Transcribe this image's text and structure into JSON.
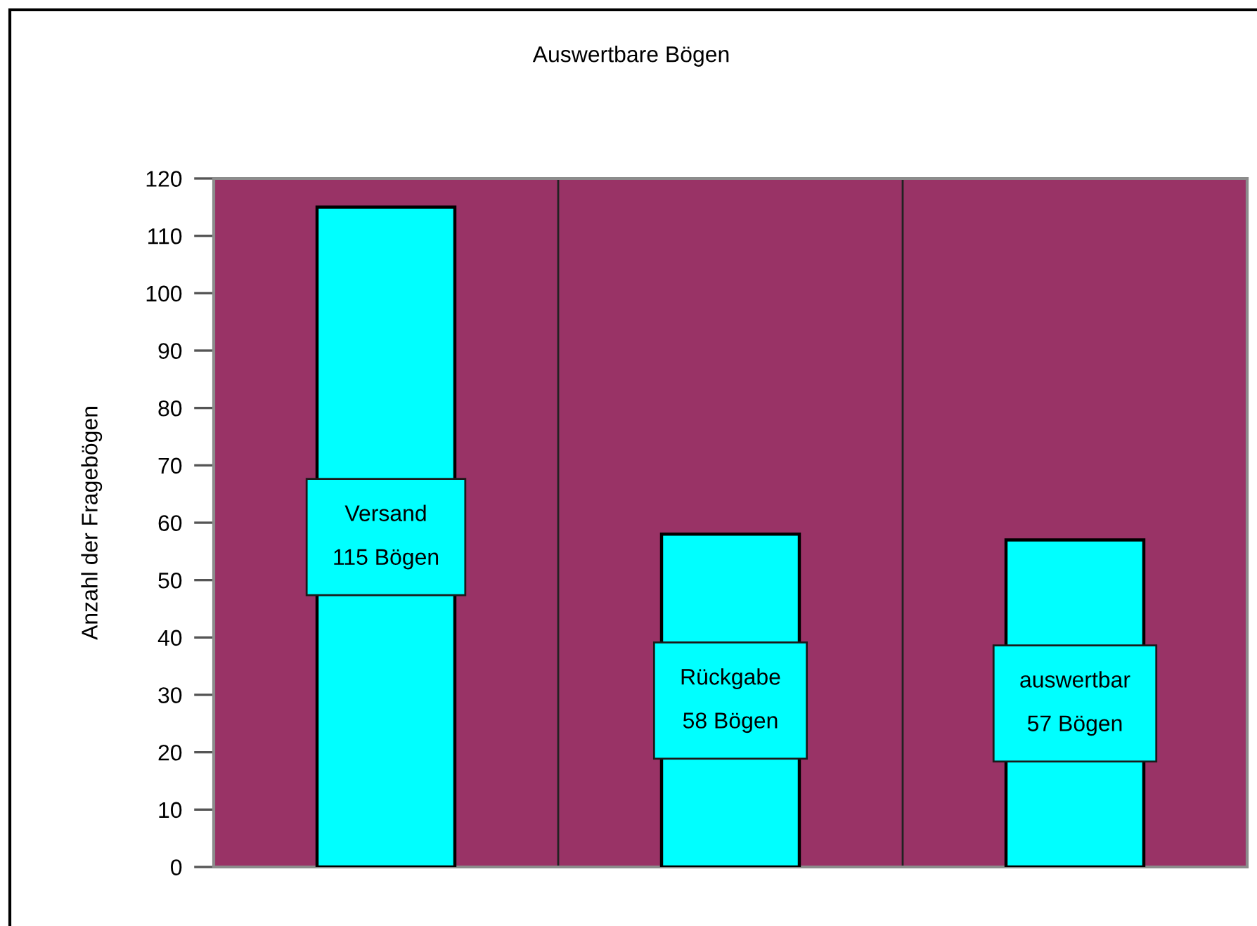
{
  "chart_data": {
    "type": "bar",
    "title": "Auswertbare Bögen",
    "ylabel": "Anzahl der Fragebögen",
    "categories": [
      null,
      null,
      null
    ],
    "values": [
      115,
      58,
      57
    ],
    "color": "#00ffff",
    "value_labels": [
      "Versand\n115 Bögen",
      "Rückgabe\n58 Bögen",
      "auswertbar\n57 Bögen"
    ],
    "ylim": [
      0,
      120
    ],
    "yticks": [
      0,
      10,
      20,
      30,
      40,
      50,
      60,
      70,
      80,
      90,
      100,
      110,
      120
    ],
    "grid": "x",
    "tick_labels": "y"
  }
}
